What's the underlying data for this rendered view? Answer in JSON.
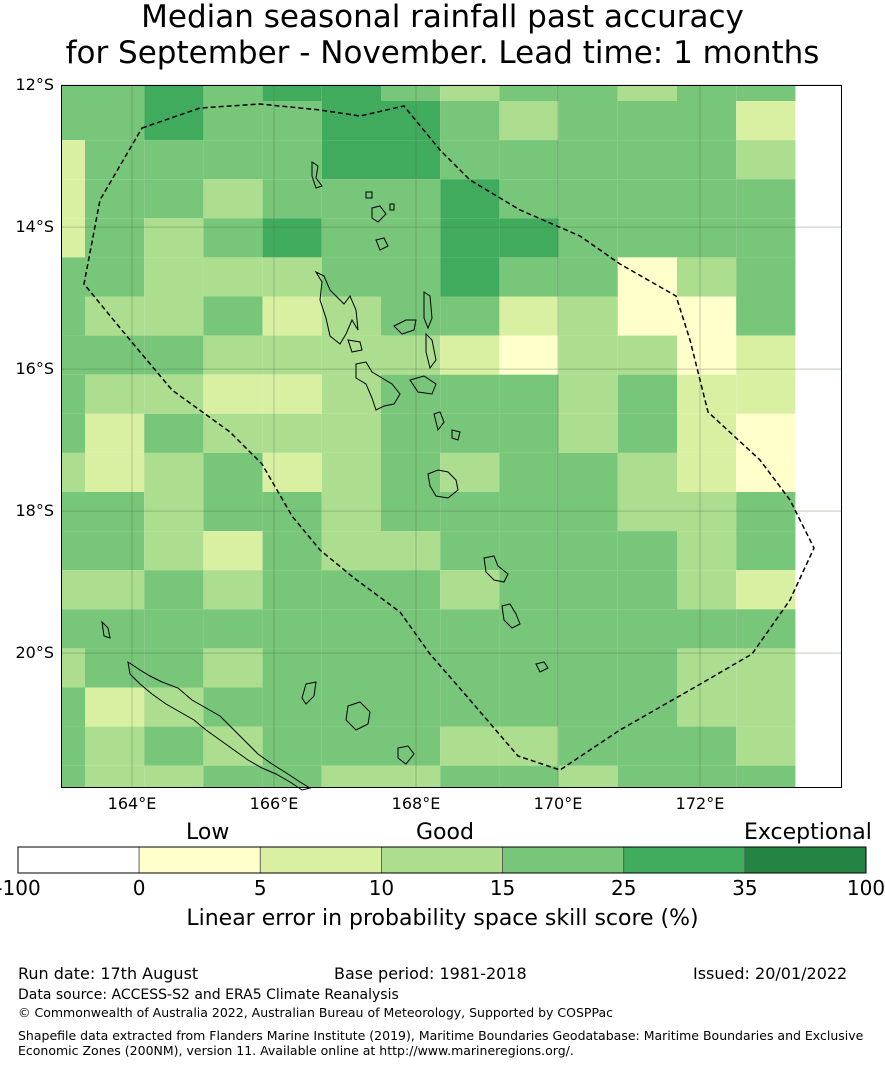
{
  "title": {
    "line1": "Median seasonal rainfall past accuracy",
    "line2": "for September - November. Lead time: 1 months"
  },
  "map": {
    "lat_labels": [
      "12°S",
      "14°S",
      "16°S",
      "18°S",
      "20°S"
    ],
    "lon_labels": [
      "164°E",
      "166°E",
      "168°E",
      "170°E",
      "172°E"
    ],
    "colors": {
      "c0": "#ffffff",
      "c1": "#ffffcc",
      "c2": "#d9f0a3",
      "c3": "#addd8e",
      "c4": "#78c679",
      "c5": "#41ab5d",
      "c6": "#238443"
    },
    "grid": [
      [
        4,
        4,
        5,
        4,
        5,
        5,
        4,
        3,
        4,
        4,
        3,
        4,
        4
      ],
      [
        4,
        4,
        5,
        4,
        4,
        5,
        5,
        4,
        3,
        4,
        4,
        4,
        2
      ],
      [
        2,
        4,
        4,
        4,
        4,
        5,
        5,
        4,
        4,
        4,
        4,
        4,
        3
      ],
      [
        2,
        4,
        4,
        3,
        4,
        4,
        4,
        5,
        4,
        4,
        4,
        4,
        4
      ],
      [
        2,
        4,
        3,
        4,
        5,
        4,
        4,
        5,
        5,
        4,
        4,
        4,
        4
      ],
      [
        4,
        4,
        3,
        3,
        3,
        4,
        4,
        5,
        4,
        4,
        1,
        3,
        4
      ],
      [
        4,
        3,
        3,
        4,
        2,
        3,
        4,
        4,
        2,
        3,
        1,
        1,
        4
      ],
      [
        4,
        4,
        4,
        3,
        3,
        3,
        3,
        2,
        1,
        3,
        3,
        1,
        2
      ],
      [
        4,
        3,
        3,
        2,
        2,
        3,
        4,
        4,
        4,
        3,
        4,
        2,
        2
      ],
      [
        4,
        2,
        4,
        3,
        3,
        3,
        4,
        4,
        4,
        3,
        4,
        2,
        1
      ],
      [
        3,
        2,
        3,
        4,
        2,
        3,
        4,
        3,
        4,
        4,
        3,
        2,
        1
      ],
      [
        4,
        4,
        3,
        4,
        4,
        3,
        4,
        4,
        4,
        4,
        3,
        3,
        4
      ],
      [
        4,
        4,
        3,
        2,
        4,
        3,
        3,
        4,
        4,
        4,
        4,
        3,
        4
      ],
      [
        3,
        3,
        4,
        3,
        4,
        4,
        4,
        3,
        4,
        4,
        4,
        3,
        2
      ],
      [
        4,
        4,
        4,
        4,
        4,
        4,
        4,
        4,
        4,
        4,
        4,
        4,
        4
      ],
      [
        3,
        4,
        4,
        3,
        4,
        4,
        4,
        4,
        4,
        4,
        4,
        3,
        3
      ],
      [
        4,
        2,
        3,
        4,
        4,
        4,
        4,
        4,
        4,
        4,
        4,
        3,
        3
      ],
      [
        4,
        3,
        4,
        3,
        4,
        4,
        4,
        3,
        3,
        4,
        4,
        4,
        3
      ],
      [
        4,
        3,
        3,
        4,
        4,
        3,
        3,
        4,
        4,
        3,
        4,
        4,
        4
      ]
    ]
  },
  "colorbar": {
    "categories": [
      "Low",
      "Good",
      "Exceptional"
    ],
    "ticks": [
      "-100",
      "0",
      "5",
      "10",
      "15",
      "25",
      "35",
      "100"
    ],
    "title": "Linear error in probability space skill score (%)"
  },
  "footer": {
    "run_date": "Run date: 17th August",
    "base_period": "Base period: 1981-2018",
    "issued": "Issued: 20/01/2022",
    "data_source": "Data source: ACCESS-S2 and ERA5 Climate Reanalysis",
    "copyright": "© Commonwealth of Australia 2022, Australian Bureau of Meteorology, Supported by COSPPac",
    "shapefile1": "Shapefile data extracted from Flanders Marine Institute (2019), Maritime Boundaries Geodatabase: Maritime Boundaries and Exclusive",
    "shapefile2": "Economic Zones (200NM), version 11. Available online at http://www.marineregions.org/."
  }
}
